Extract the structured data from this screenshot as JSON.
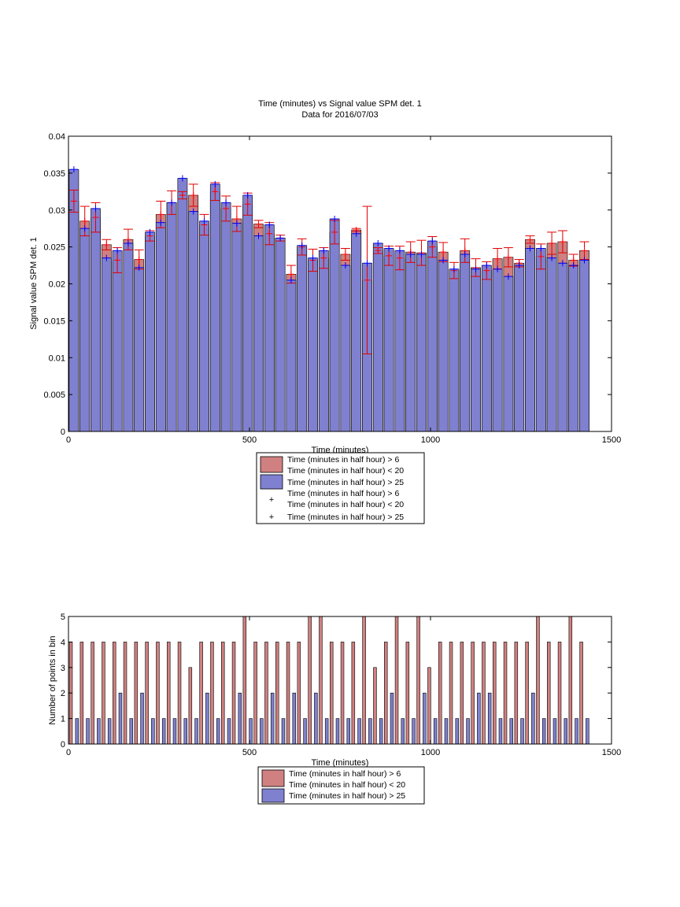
{
  "chart_data": [
    {
      "type": "bar",
      "title": "Time (minutes) vs Signal value SPM det. 1",
      "subtitle": "Data for 2016/07/03",
      "xlabel": "Time (minutes)",
      "ylabel": "Signal value SPM det. 1",
      "xlim": [
        0,
        1500
      ],
      "ylim": [
        0,
        0.04
      ],
      "xticks": [
        0,
        500,
        1000,
        1500
      ],
      "xtick_labels": [
        "0",
        "500",
        "1000",
        "1500"
      ],
      "yticks": [
        0,
        0.005,
        0.01,
        0.015,
        0.02,
        0.025,
        0.03,
        0.035,
        0.04
      ],
      "ytick_labels": [
        "0",
        "0.005",
        "0.01",
        "0.015",
        "0.02",
        "0.025",
        "0.03",
        "0.035",
        "0.04"
      ],
      "grid": false,
      "legend_position": "below",
      "x": [
        15,
        45,
        75,
        105,
        135,
        165,
        195,
        225,
        255,
        285,
        315,
        345,
        375,
        405,
        435,
        465,
        495,
        525,
        555,
        585,
        615,
        645,
        675,
        705,
        735,
        765,
        795,
        825,
        855,
        885,
        915,
        945,
        975,
        1005,
        1035,
        1065,
        1095,
        1125,
        1155,
        1185,
        1215,
        1245,
        1275,
        1305,
        1335,
        1365,
        1395,
        1425
      ],
      "series": [
        {
          "name": "Time (minutes in half hour) > 6",
          "name2": "Time (minutes in half hour) < 20",
          "color": "#d08080",
          "values": [
            0.0312,
            0.0285,
            0.029,
            0.0253,
            0.0232,
            0.026,
            0.0233,
            0.0265,
            0.0294,
            0.031,
            0.032,
            0.032,
            0.028,
            0.0325,
            0.0302,
            0.0288,
            0.0308,
            0.0281,
            0.0268,
            0.0262,
            0.0213,
            0.025,
            0.0232,
            0.0235,
            0.027,
            0.024,
            0.0273,
            0.0205,
            0.0245,
            0.0238,
            0.0235,
            0.0243,
            0.0242,
            0.025,
            0.0243,
            0.0218,
            0.0245,
            0.0222,
            0.0218,
            0.0234,
            0.0236,
            0.0228,
            0.026,
            0.0237,
            0.0255,
            0.0257,
            0.0232,
            0.0245
          ],
          "err": [
            0.0015,
            0.002,
            0.002,
            0.0007,
            0.0017,
            0.0014,
            0.0013,
            0.0007,
            0.0018,
            0.0016,
            0.0005,
            0.0015,
            0.0014,
            0.0012,
            0.0017,
            0.0017,
            0.0015,
            0.0005,
            0.0015,
            0.0004,
            0.0012,
            0.0011,
            0.0015,
            0.0014,
            0.0016,
            0.0008,
            0.0002,
            0.01,
            0.0004,
            0.0013,
            0.0016,
            0.0014,
            0.0017,
            0.0014,
            0.0013,
            0.0011,
            0.0016,
            0.0012,
            0.0012,
            0.0014,
            0.0013,
            0.0005,
            0.0005,
            0.0017,
            0.0015,
            0.0015,
            0.0008,
            0.0012
          ]
        },
        {
          "name": "Time (minutes in half hour) > 25",
          "color": "#8080d0",
          "values": [
            0.0355,
            0.0275,
            0.0302,
            0.0235,
            0.0245,
            0.0255,
            0.0222,
            0.027,
            0.0283,
            0.031,
            0.0343,
            0.0298,
            0.0285,
            0.0335,
            0.031,
            0.0282,
            0.032,
            0.0265,
            0.028,
            0.0262,
            0.0205,
            0.0252,
            0.0235,
            0.0245,
            0.0288,
            0.0225,
            0.0268,
            0.0228,
            0.0255,
            0.0248,
            0.0245,
            0.024,
            0.024,
            0.0258,
            0.0232,
            0.022,
            0.024,
            0.022,
            0.0225,
            0.022,
            0.021,
            0.0225,
            0.0248,
            0.0248,
            0.0235,
            0.0228,
            0.0225,
            0.0232
          ]
        }
      ],
      "markers": [
        {
          "name": "Time (minutes in half hour) > 6",
          "name2": "Time (minutes in half hour) < 20",
          "color": "#ff0000",
          "symbol": "+"
        },
        {
          "name": "Time (minutes in half hour) > 25",
          "color": "#0000ff",
          "symbol": "+"
        }
      ]
    },
    {
      "type": "bar",
      "title": "",
      "xlabel": "Time (minutes)",
      "ylabel": "Number of points in bin",
      "xlim": [
        0,
        1500
      ],
      "ylim": [
        0,
        5
      ],
      "xticks": [
        0,
        500,
        1000,
        1500
      ],
      "xtick_labels": [
        "0",
        "500",
        "1000",
        "1500"
      ],
      "yticks": [
        0,
        1,
        2,
        3,
        4,
        5
      ],
      "ytick_labels": [
        "0",
        "1",
        "2",
        "3",
        "4",
        "5"
      ],
      "grid": false,
      "legend_position": "below",
      "x": [
        15,
        45,
        75,
        105,
        135,
        165,
        195,
        225,
        255,
        285,
        315,
        345,
        375,
        405,
        435,
        465,
        495,
        525,
        555,
        585,
        615,
        645,
        675,
        705,
        735,
        765,
        795,
        825,
        855,
        885,
        915,
        945,
        975,
        1005,
        1035,
        1065,
        1095,
        1125,
        1155,
        1185,
        1215,
        1245,
        1275,
        1305,
        1335,
        1365,
        1395,
        1425
      ],
      "series": [
        {
          "name": "Time (minutes in half hour) > 6",
          "name2": "Time (minutes in half hour) < 20",
          "color": "#d08080",
          "values": [
            4,
            4,
            4,
            4,
            4,
            4,
            4,
            4,
            4,
            4,
            4,
            3,
            4,
            4,
            4,
            4,
            5,
            4,
            4,
            4,
            4,
            4,
            5,
            5,
            4,
            4,
            4,
            5,
            3,
            4,
            5,
            4,
            5,
            3,
            4,
            4,
            4,
            4,
            4,
            4,
            4,
            4,
            4,
            5,
            4,
            4,
            5,
            4
          ]
        },
        {
          "name": "Time (minutes in half hour) > 25",
          "color": "#8080d0",
          "values": [
            1,
            1,
            1,
            1,
            2,
            1,
            2,
            1,
            1,
            1,
            1,
            1,
            2,
            1,
            1,
            2,
            1,
            1,
            2,
            1,
            2,
            1,
            2,
            1,
            1,
            1,
            1,
            1,
            1,
            2,
            1,
            1,
            2,
            1,
            1,
            1,
            1,
            2,
            2,
            1,
            1,
            1,
            2,
            1,
            1,
            1,
            1,
            1
          ]
        }
      ]
    }
  ]
}
